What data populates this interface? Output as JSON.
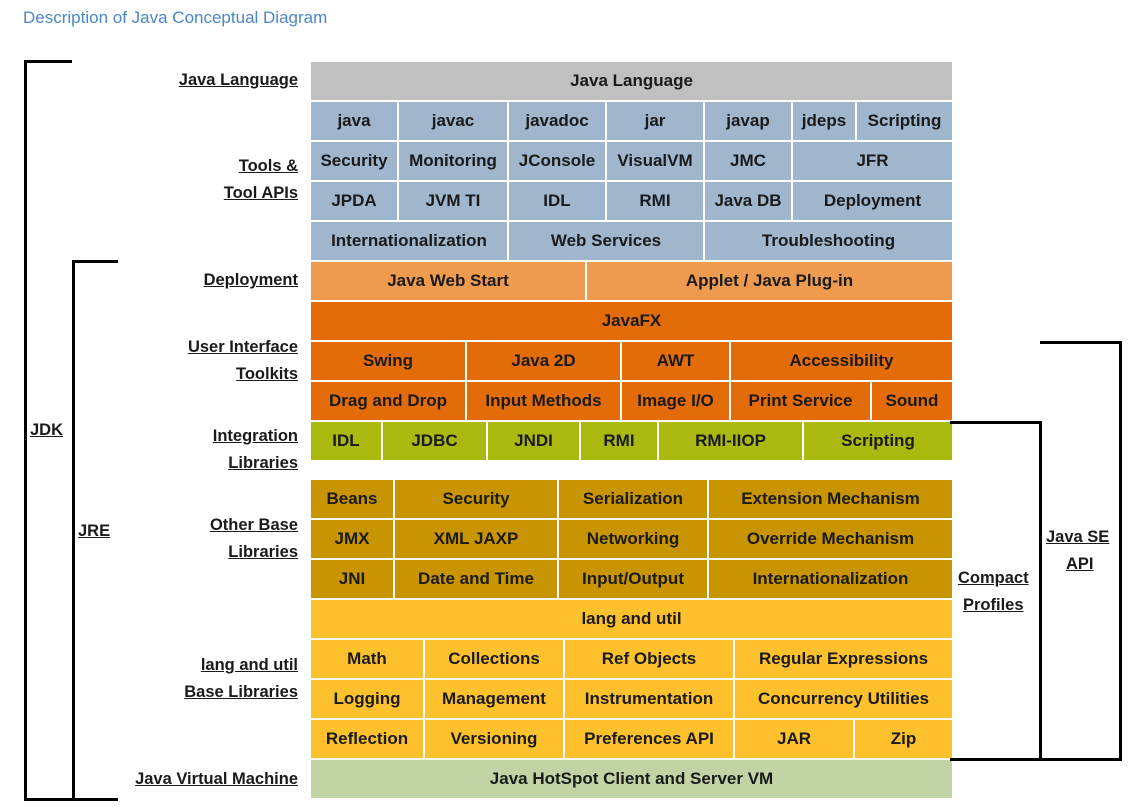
{
  "title": "Description of Java Conceptual Diagram",
  "row_labels": {
    "java_language": "Java Language",
    "tools_1": "Tools &",
    "tools_2": "Tool APIs",
    "deployment": "Deployment",
    "ui_1": "User Interface",
    "ui_2": "Toolkits",
    "integration_1": "Integration",
    "integration_2": "Libraries",
    "other_1": "Other Base",
    "other_2": "Libraries",
    "langutil_1": "lang and util",
    "langutil_2": "Base Libraries",
    "jvm": "Java Virtual Machine"
  },
  "side_labels": {
    "jdk": "JDK",
    "jre": "JRE",
    "compact_1": "Compact",
    "compact_2": "Profiles",
    "javase_1": "Java SE",
    "javase_2": "API"
  },
  "colors": {
    "language": "#c0c0c0",
    "tools": "#9fb6cd",
    "deployment": "#ee9b50",
    "ui": "#e36c09",
    "integration": "#a9b90e",
    "other": "#c89400",
    "langutil": "#fcc12d",
    "jvm": "#c2d4a6"
  },
  "rows": [
    {
      "group": "language",
      "cells": [
        {
          "label": "Java Language",
          "w": 641
        }
      ]
    },
    {
      "group": "tools",
      "cells": [
        {
          "label": "java",
          "w": 88
        },
        {
          "label": "javac",
          "w": 110
        },
        {
          "label": "javadoc",
          "w": 98
        },
        {
          "label": "jar",
          "w": 98
        },
        {
          "label": "javap",
          "w": 88
        },
        {
          "label": "jdeps",
          "w": 64
        },
        {
          "label": "Scripting",
          "w": 95
        }
      ]
    },
    {
      "group": "tools",
      "cells": [
        {
          "label": "Security",
          "w": 88
        },
        {
          "label": "Monitoring",
          "w": 110
        },
        {
          "label": "JConsole",
          "w": 98
        },
        {
          "label": "VisualVM",
          "w": 98
        },
        {
          "label": "JMC",
          "w": 88
        },
        {
          "label": "JFR",
          "w": 159
        }
      ]
    },
    {
      "group": "tools",
      "cells": [
        {
          "label": "JPDA",
          "w": 88
        },
        {
          "label": "JVM TI",
          "w": 110
        },
        {
          "label": "IDL",
          "w": 98
        },
        {
          "label": "RMI",
          "w": 98
        },
        {
          "label": "Java DB",
          "w": 88
        },
        {
          "label": "Deployment",
          "w": 159
        }
      ]
    },
    {
      "group": "tools",
      "cells": [
        {
          "label": "Internationalization",
          "w": 198
        },
        {
          "label": "Web Services",
          "w": 196
        },
        {
          "label": "Troubleshooting",
          "w": 247
        }
      ]
    },
    {
      "group": "deployment",
      "cells": [
        {
          "label": "Java Web Start",
          "w": 276
        },
        {
          "label": "Applet / Java Plug-in",
          "w": 365
        }
      ]
    },
    {
      "group": "ui",
      "cells": [
        {
          "label": "JavaFX",
          "w": 641
        }
      ]
    },
    {
      "group": "ui",
      "cells": [
        {
          "label": "Swing",
          "w": 156
        },
        {
          "label": "Java 2D",
          "w": 155
        },
        {
          "label": "AWT",
          "w": 109
        },
        {
          "label": "Accessibility",
          "w": 221
        }
      ]
    },
    {
      "group": "ui",
      "cells": [
        {
          "label": "Drag and Drop",
          "w": 156
        },
        {
          "label": "Input Methods",
          "w": 155
        },
        {
          "label": "Image I/O",
          "w": 109
        },
        {
          "label": "Print Service",
          "w": 141
        },
        {
          "label": "Sound",
          "w": 80
        }
      ]
    },
    {
      "group": "integration",
      "cells": [
        {
          "label": "IDL",
          "w": 72
        },
        {
          "label": "JDBC",
          "w": 105
        },
        {
          "label": "JNDI",
          "w": 93
        },
        {
          "label": "RMI",
          "w": 78
        },
        {
          "label": "RMI-IIOP",
          "w": 145
        },
        {
          "label": "Scripting",
          "w": 148
        }
      ]
    },
    {
      "group": "other",
      "cells": [
        {
          "label": "Beans",
          "w": 84
        },
        {
          "label": "Security",
          "w": 164
        },
        {
          "label": "Serialization",
          "w": 150
        },
        {
          "label": "Extension Mechanism",
          "w": 243
        }
      ]
    },
    {
      "group": "other",
      "cells": [
        {
          "label": "JMX",
          "w": 84
        },
        {
          "label": "XML JAXP",
          "w": 164
        },
        {
          "label": "Networking",
          "w": 150
        },
        {
          "label": "Override Mechanism",
          "w": 243
        }
      ]
    },
    {
      "group": "other",
      "cells": [
        {
          "label": "JNI",
          "w": 84
        },
        {
          "label": "Date and Time",
          "w": 164
        },
        {
          "label": "Input/Output",
          "w": 150
        },
        {
          "label": "Internationalization",
          "w": 243
        }
      ]
    },
    {
      "group": "langutil",
      "cells": [
        {
          "label": "lang and util",
          "w": 641
        }
      ]
    },
    {
      "group": "langutil",
      "cells": [
        {
          "label": "Math",
          "w": 114
        },
        {
          "label": "Collections",
          "w": 140
        },
        {
          "label": "Ref Objects",
          "w": 170
        },
        {
          "label": "Regular Expressions",
          "w": 217
        }
      ]
    },
    {
      "group": "langutil",
      "cells": [
        {
          "label": "Logging",
          "w": 114
        },
        {
          "label": "Management",
          "w": 140
        },
        {
          "label": "Instrumentation",
          "w": 170
        },
        {
          "label": "Concurrency Utilities",
          "w": 217
        }
      ]
    },
    {
      "group": "langutil",
      "cells": [
        {
          "label": "Reflection",
          "w": 114
        },
        {
          "label": "Versioning",
          "w": 140
        },
        {
          "label": "Preferences API",
          "w": 170
        },
        {
          "label": "JAR",
          "w": 120
        },
        {
          "label": "Zip",
          "w": 97
        }
      ]
    },
    {
      "group": "jvm",
      "cells": [
        {
          "label": "Java HotSpot Client and Server VM",
          "w": 641
        }
      ]
    }
  ]
}
